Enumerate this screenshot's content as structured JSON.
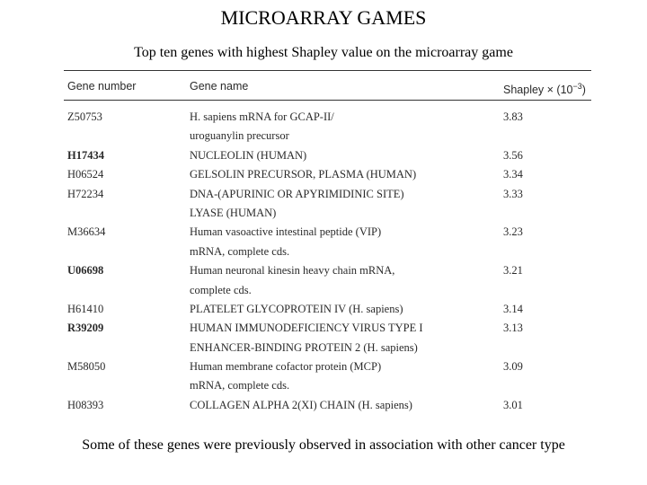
{
  "title": "MICROARRAY GAMES",
  "caption": "Top ten genes with highest Shapley value on the microarray game",
  "table": {
    "headers": {
      "gene_number": "Gene number",
      "gene_name": "Gene name",
      "shapley": "Shapley × (10",
      "shapley_exp": "−3",
      "shapley_close": ")"
    },
    "rows": [
      {
        "gene_number": "Z50753",
        "gene_name_lines": [
          "H. sapiens mRNA for GCAP-II/",
          "uroguanylin precursor"
        ],
        "shapley": "3.83",
        "bold": false
      },
      {
        "gene_number": "H17434",
        "gene_name_lines": [
          "NUCLEOLIN (HUMAN)"
        ],
        "shapley": "3.56",
        "bold": true
      },
      {
        "gene_number": "H06524",
        "gene_name_lines": [
          "GELSOLIN PRECURSOR, PLASMA (HUMAN)"
        ],
        "shapley": "3.34",
        "bold": false
      },
      {
        "gene_number": "H72234",
        "gene_name_lines": [
          "DNA-(APURINIC OR APYRIMIDINIC SITE)",
          "LYASE (HUMAN)"
        ],
        "shapley": "3.33",
        "bold": false
      },
      {
        "gene_number": "M36634",
        "gene_name_lines": [
          "Human vasoactive intestinal peptide (VIP)",
          "mRNA, complete cds."
        ],
        "shapley": "3.23",
        "bold": false
      },
      {
        "gene_number": "U06698",
        "gene_name_lines": [
          "Human neuronal kinesin heavy chain mRNA,",
          "complete cds."
        ],
        "shapley": "3.21",
        "bold": true
      },
      {
        "gene_number": "H61410",
        "gene_name_lines": [
          "PLATELET GLYCOPROTEIN IV (H. sapiens)"
        ],
        "shapley": "3.14",
        "bold": false
      },
      {
        "gene_number": "R39209",
        "gene_name_lines": [
          "HUMAN IMMUNODEFICIENCY VIRUS TYPE I",
          "ENHANCER-BINDING PROTEIN 2 (H. sapiens)"
        ],
        "shapley": "3.13",
        "bold": true
      },
      {
        "gene_number": "M58050",
        "gene_name_lines": [
          "Human membrane cofactor protein (MCP)",
          "mRNA, complete cds."
        ],
        "shapley": "3.09",
        "bold": false
      },
      {
        "gene_number": "H08393",
        "gene_name_lines": [
          "COLLAGEN ALPHA 2(XI) CHAIN (H. sapiens)"
        ],
        "shapley": "3.01",
        "bold": false
      }
    ]
  },
  "footer": "Some of these genes were previously observed in association with other cancer type"
}
